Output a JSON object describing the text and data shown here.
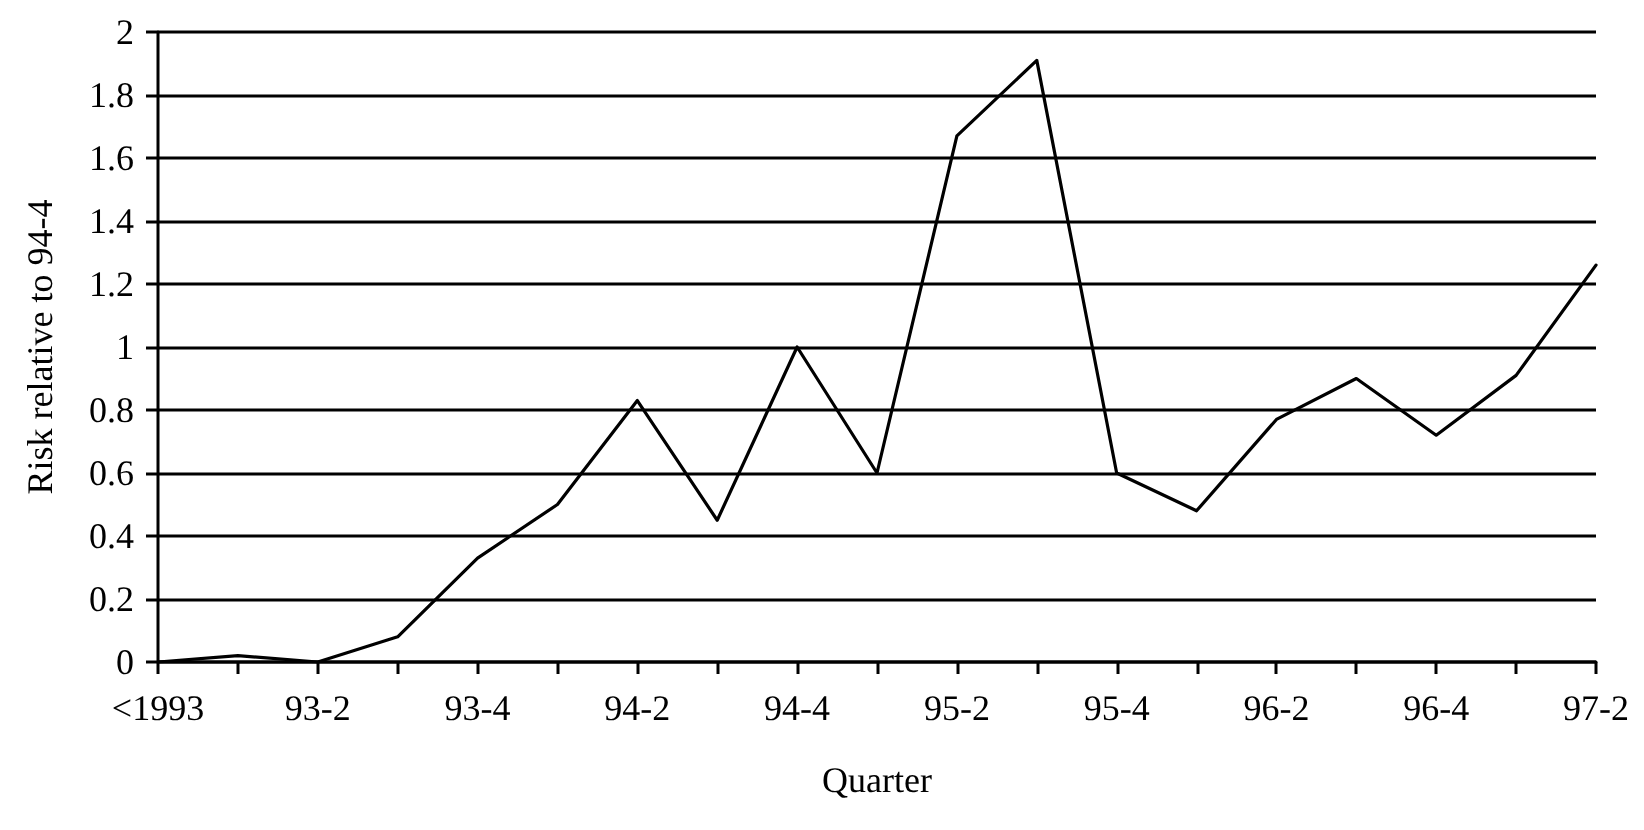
{
  "chart_data": {
    "type": "line",
    "xlabel": "Quarter",
    "ylabel": "Risk relative to 94-4",
    "categories": [
      "<1993",
      null,
      "93-2",
      null,
      "93-4",
      null,
      "94-2",
      null,
      "94-4",
      null,
      "95-2",
      null,
      "95-4",
      null,
      "96-2",
      null,
      "96-4",
      null,
      "97-2"
    ],
    "series": [
      {
        "color": "#000000",
        "values": [
          0,
          0.02,
          0,
          0.08,
          0.33,
          0.5,
          0.83,
          0.45,
          1.0,
          0.6,
          1.67,
          1.91,
          0.6,
          0.48,
          0.77,
          0.9,
          0.72,
          0.91,
          1.26
        ]
      }
    ],
    "ylim": [
      0,
      2
    ],
    "yticks": [
      0,
      0.2,
      0.4,
      0.6,
      0.8,
      1,
      1.2,
      1.4,
      1.6,
      1.8,
      2
    ],
    "grid": "y",
    "marker": "none",
    "line_style": "solid"
  }
}
